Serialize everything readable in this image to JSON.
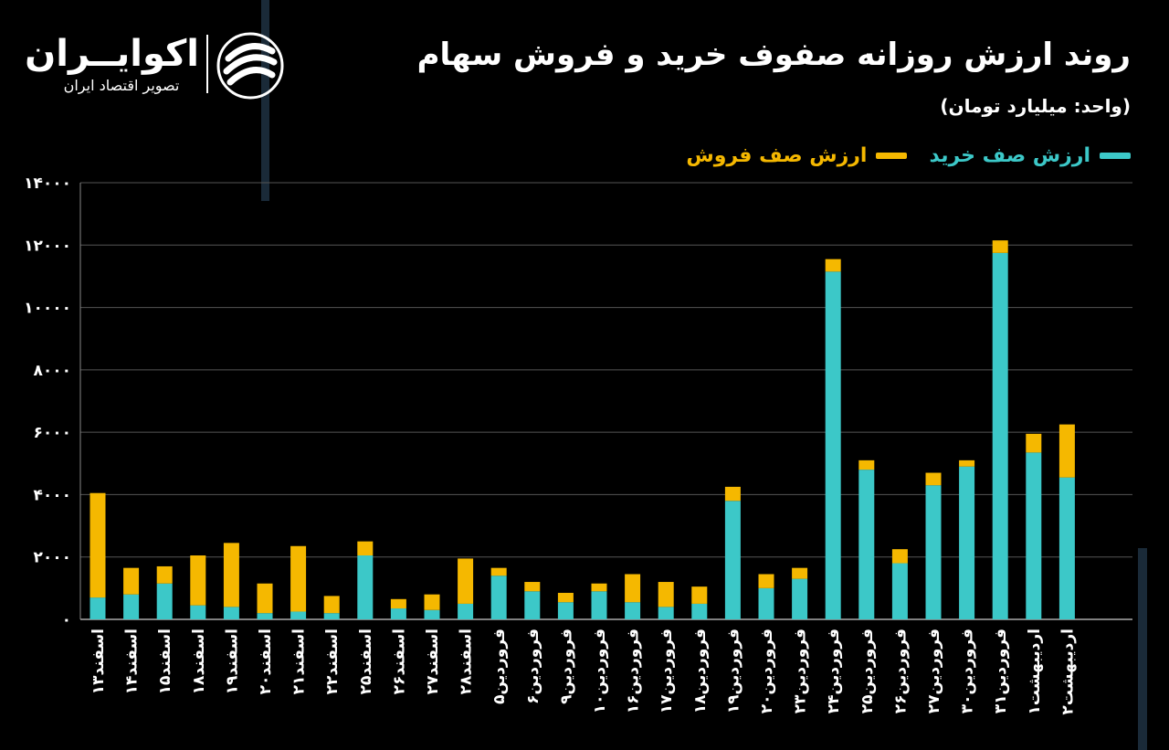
{
  "header": {
    "title": "روند ارزش روزانه صفوف خرید و فروش سهام",
    "unit": "(واحد: میلیارد تومان)"
  },
  "brand": {
    "name": "اکوایــران",
    "subtitle": "تصویر اقتصاد ایران",
    "logo_icon": "swirl-logo-icon"
  },
  "colors": {
    "background": "#000000",
    "buy": "#3cc8c8",
    "sell": "#f5b800",
    "grid": "#555555"
  },
  "chart_data": {
    "type": "bar",
    "stacked": true,
    "categories": [
      "اسفند۱۳",
      "اسفند۱۴",
      "اسفند۱۵",
      "اسفند۱۸",
      "اسفند۱۹",
      "اسفند۲۰",
      "اسفند۲۱",
      "اسفند۲۲",
      "اسفند۲۵",
      "اسفند۲۶",
      "اسفند۲۷",
      "اسفند۲۸",
      "فروردین۵",
      "فروردین۶",
      "فروردین۹",
      "فروردین۱۰",
      "فروردین۱۶",
      "فروردین۱۷",
      "فروردین۱۸",
      "فروردین۱۹",
      "فروردین۲۰",
      "فروردین۲۳",
      "فروردین۲۴",
      "فروردین۲۵",
      "فروردین۲۶",
      "فروردین۲۷",
      "فروردین۳۰",
      "فروردین۳۱",
      "اردیبهشت۱",
      "اردیبهشت۲"
    ],
    "series": [
      {
        "name": "ارزش صف خرید",
        "color": "#3cc8c8",
        "values": [
          700,
          800,
          1150,
          450,
          400,
          200,
          250,
          200,
          2050,
          350,
          300,
          500,
          1400,
          900,
          550,
          900,
          550,
          400,
          500,
          3800,
          1000,
          1300,
          11150,
          4800,
          1800,
          4300,
          4900,
          11750,
          5350,
          4550
        ]
      },
      {
        "name": "ارزش صف فروش",
        "color": "#f5b800",
        "values": [
          3350,
          850,
          550,
          1600,
          2050,
          950,
          2100,
          550,
          450,
          300,
          500,
          1450,
          250,
          300,
          300,
          250,
          900,
          800,
          550,
          450,
          450,
          350,
          400,
          300,
          450,
          400,
          200,
          400,
          600,
          1700
        ]
      }
    ],
    "legend": [
      "ارزش صف خرید",
      "ارزش صف فروش"
    ],
    "legend_position": "top-right",
    "ylim": [
      0,
      14000
    ],
    "yticks": [
      0,
      2000,
      4000,
      6000,
      8000,
      10000,
      12000,
      14000
    ],
    "ytick_labels": [
      "۰",
      "۲۰۰۰",
      "۴۰۰۰",
      "۶۰۰۰",
      "۸۰۰۰",
      "۱۰۰۰۰",
      "۱۲۰۰۰",
      "۱۴۰۰۰"
    ],
    "grid": true
  }
}
